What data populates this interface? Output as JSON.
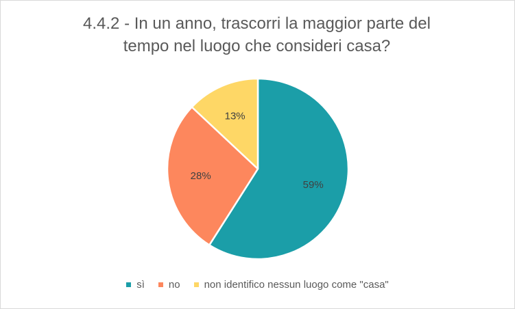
{
  "chart_data": {
    "type": "pie",
    "title_lines": [
      "4.4.2 - In un anno, trascorri la maggior parte del",
      "tempo nel luogo che consideri casa?"
    ],
    "categories": [
      "sì",
      "no",
      "non identifico nessun luogo come \"casa\""
    ],
    "values": [
      59,
      28,
      13
    ],
    "labels": [
      "59%",
      "28%",
      "13%"
    ],
    "colors": [
      "#1b9ea8",
      "#fd875d",
      "#fed766"
    ],
    "start_angle_deg": 0,
    "direction": "clockwise",
    "legend_position": "bottom"
  }
}
